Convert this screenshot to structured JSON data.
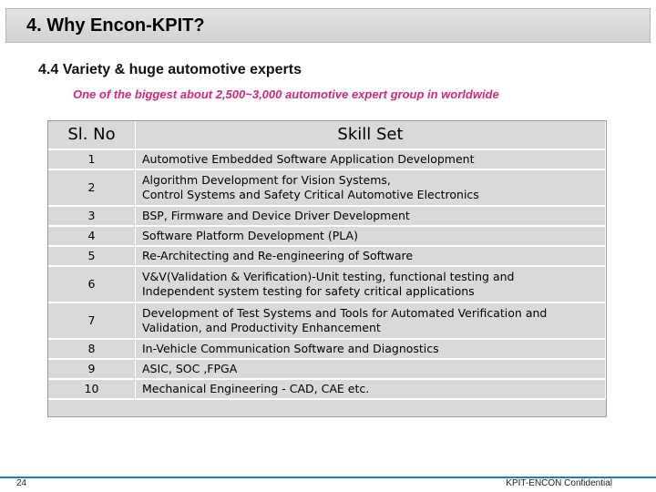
{
  "slide": {
    "title": "4. Why Encon-KPIT?",
    "subtitle": "4.4  Variety & huge automotive experts",
    "tagline": "One of the biggest about 2,500~3,000 automotive expert group in worldwide"
  },
  "table": {
    "headers": {
      "no": "Sl. No",
      "skill": "Skill Set"
    },
    "rows": [
      {
        "no": "1",
        "lines": [
          "Automotive Embedded Software Application Development"
        ]
      },
      {
        "no": "2",
        "lines": [
          "Algorithm Development for Vision Systems,",
          "Control Systems and Safety Critical Automotive Electronics"
        ]
      },
      {
        "no": "3",
        "lines": [
          "BSP, Firmware and Device Driver Development"
        ]
      },
      {
        "no": "4",
        "lines": [
          "Software Platform Development (PLA)"
        ]
      },
      {
        "no": "5",
        "lines": [
          "Re-Architecting and Re-engineering of Software"
        ]
      },
      {
        "no": "6",
        "lines": [
          "V&V(Validation & Verification)-Unit testing, functional testing and",
          "Independent system testing for safety critical applications"
        ]
      },
      {
        "no": "7",
        "lines": [
          "Development of Test Systems and Tools for Automated Verification and",
          "Validation, and Productivity Enhancement"
        ]
      },
      {
        "no": "8",
        "lines": [
          "In-Vehicle Communication Software and Diagnostics"
        ]
      },
      {
        "no": "9",
        "lines": [
          "ASIC, SOC ,FPGA"
        ]
      },
      {
        "no": "10",
        "lines": [
          "Mechanical Engineering - CAD, CAE  etc."
        ]
      }
    ]
  },
  "footer": {
    "page_number": "24",
    "confidential": "KPIT-ENCON Confidential"
  },
  "colors": {
    "accent_line": "#1f7fb8",
    "tagline": "#d4287a",
    "table_bg": "#d9d9d9"
  }
}
